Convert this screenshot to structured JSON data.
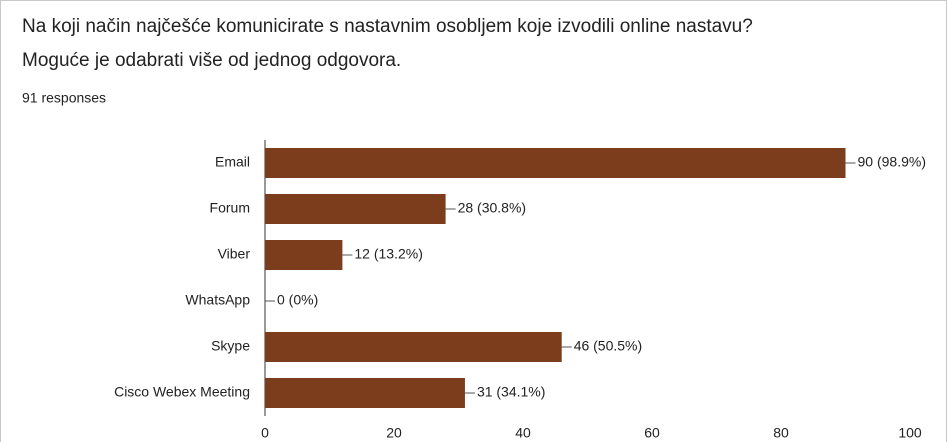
{
  "chart_data": {
    "type": "bar",
    "orientation": "horizontal",
    "title": [
      "Na koji način najčešće komunicirate s nastavnim osobljem koje izvodili online nastavu?",
      "Moguće je odabrati više od jednog odgovora."
    ],
    "subtitle": "91 responses",
    "categories": [
      "Email",
      "Forum",
      "Viber",
      "WhatsApp",
      "Skype",
      "Cisco Webex Meeting"
    ],
    "values": [
      90,
      28,
      12,
      0,
      46,
      31
    ],
    "value_labels": [
      "90 (98.9%)",
      "28 (30.8%)",
      "12 (13.2%)",
      "0 (0%)",
      "46 (50.5%)",
      "31 (34.1%)"
    ],
    "color": "#7b3d1c",
    "xlim": [
      0,
      100
    ],
    "xticks": [
      0,
      20,
      40,
      60,
      80,
      100
    ],
    "grid": false
  }
}
